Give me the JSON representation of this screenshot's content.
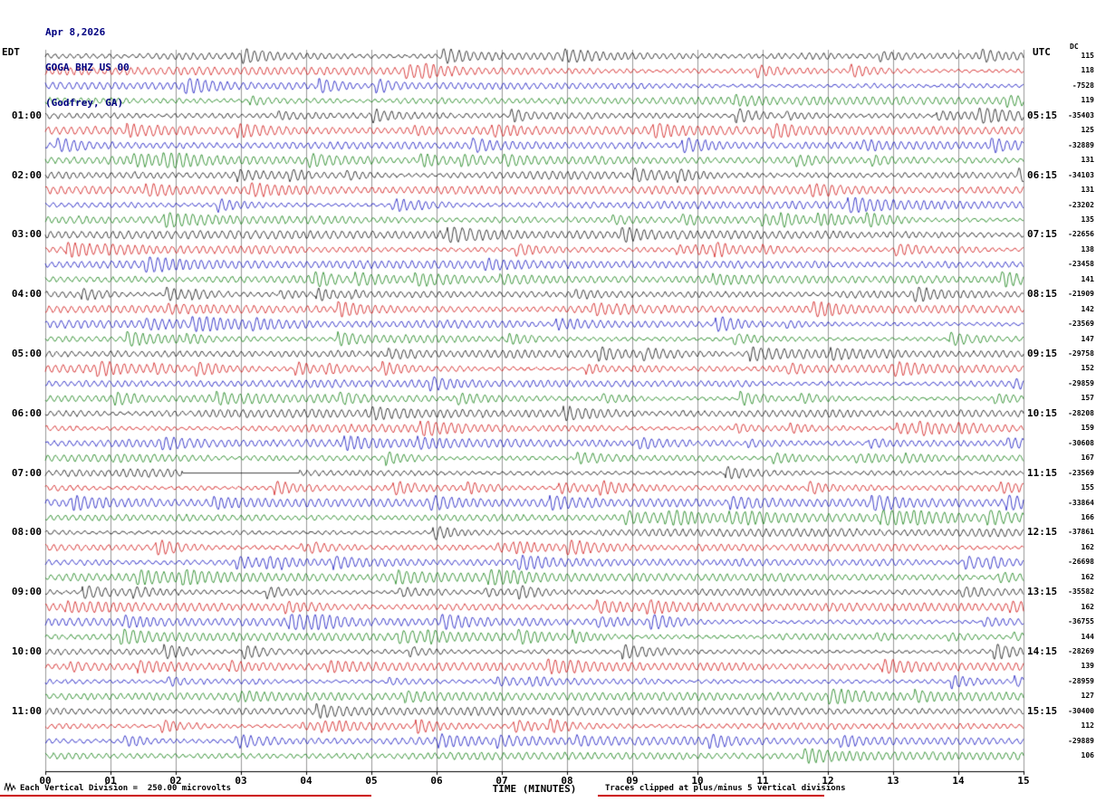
{
  "header": {
    "date": "Apr 8,2026",
    "station": "GOGA BHZ US 00",
    "location": "(Godfrey, GA)"
  },
  "axes": {
    "left_label": "EDT",
    "right_label": "UTC",
    "dc_label": "DC",
    "x_title": "TIME (MINUTES)"
  },
  "footer": {
    "scale_note": "Each Vertical Division =  250.00 microvolts",
    "clip_note": "Traces clipped at plus/minus 5 vertical divisions"
  },
  "colors": {
    "background": "#ffffff",
    "header_text": "#000080",
    "label_text": "#000000",
    "grid": "#999999",
    "axis": "#000000",
    "underline": "#cc0000"
  },
  "chart_data": {
    "type": "line",
    "subtype": "helicorder-seismogram",
    "title": "GOGA BHZ US 00 (Godfrey, GA) Apr 8,2026",
    "rows": 48,
    "minutes_per_row": 15,
    "x_range": [
      0,
      15
    ],
    "x_ticks": [
      "00",
      "01",
      "02",
      "03",
      "04",
      "05",
      "06",
      "07",
      "08",
      "09",
      "10",
      "11",
      "12",
      "13",
      "14",
      "15"
    ],
    "trace_color_cycle": [
      "#000000",
      "#cc0000",
      "#0000bb",
      "#007700"
    ],
    "edt_labels": [
      "01:00",
      "02:00",
      "03:00",
      "04:00",
      "05:00",
      "06:00",
      "07:00",
      "08:00",
      "09:00",
      "10:00",
      "11:00"
    ],
    "utc_labels": [
      "05:15",
      "06:15",
      "07:15",
      "08:15",
      "09:15",
      "10:15",
      "11:15",
      "12:15",
      "13:15",
      "14:15",
      "15:15"
    ],
    "hour_label_rows_start": 4,
    "hour_label_rows_step": 4,
    "dc_offsets": [
      115,
      118,
      -7528,
      119,
      -35403,
      125,
      -32889,
      131,
      -34103,
      131,
      -23202,
      135,
      -22656,
      138,
      -23458,
      141,
      -21909,
      142,
      -23569,
      147,
      -29758,
      152,
      -29859,
      157,
      -28208,
      159,
      -30608,
      167,
      -23569,
      155,
      -33864,
      166,
      -37861,
      162,
      -26698,
      162,
      -35582,
      162,
      -36755,
      144,
      -28269,
      139,
      -28959,
      127,
      -30400,
      112,
      -29889,
      106
    ],
    "microvolts_per_division": 250.0,
    "clip_divisions": 5,
    "flat_segment": {
      "row": 28,
      "from_minute": 2.1,
      "to_minute": 3.9
    },
    "noise_seed": 9001,
    "waveform_note": "continuous microseismic background noise; fine waveform not resolvable at this scale, rendered as seeded band-limited noise clipped at +/-5 divisions"
  }
}
